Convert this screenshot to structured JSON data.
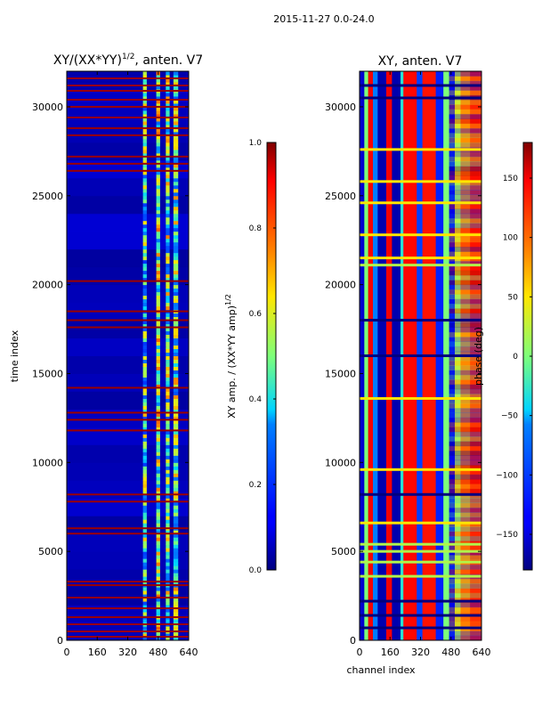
{
  "figure": {
    "suptitle": "2015-11-27 0.0-24.0"
  },
  "chart_data": [
    {
      "type": "heatmap",
      "title": "XY/(XX*YY)^1/2, anten. V7",
      "title_main": "XY/(XX*YY)",
      "title_exp": "1/2",
      "title_tail": ", anten. V7",
      "xlabel": "",
      "ylabel": "time index",
      "xlim": [
        0,
        640
      ],
      "ylim": [
        0,
        32000
      ],
      "xticks": [
        0,
        160,
        320,
        480,
        640
      ],
      "yticks": [
        0,
        5000,
        10000,
        15000,
        20000,
        25000,
        30000
      ],
      "colorbar": {
        "label": "XY amp. / (XX*YY amp)^1/2",
        "label_main": "XY amp. / (XX*YY amp)",
        "label_exp": "1/2",
        "range": [
          0.0,
          1.0
        ],
        "ticks": [
          "0.0",
          "0.2",
          "0.4",
          "0.6",
          "0.8",
          "1.0"
        ],
        "tick_values": [
          0.0,
          0.2,
          0.4,
          0.6,
          0.8,
          1.0
        ]
      },
      "background_level": 0.05,
      "bands": [
        {
          "x0": 400,
          "x1": 420,
          "level": 0.45
        },
        {
          "x0": 470,
          "x1": 490,
          "level": 0.55
        },
        {
          "x0": 520,
          "x1": 540,
          "level": 0.5
        },
        {
          "x0": 560,
          "x1": 585,
          "level": 0.5
        }
      ],
      "flag_rows": [
        200,
        500,
        900,
        1300,
        1800,
        2400,
        3100,
        3300,
        6000,
        6300,
        7800,
        8200,
        11800,
        12400,
        12800,
        14200,
        17600,
        18000,
        18500,
        20200,
        26400,
        26800,
        27200,
        28400,
        28800,
        29400,
        30000,
        30400,
        30900,
        31200,
        31600
      ]
    },
    {
      "type": "heatmap",
      "title": "XY, anten. V7",
      "xlabel": "channel index",
      "ylabel": "",
      "xlim": [
        0,
        640
      ],
      "ylim": [
        0,
        32000
      ],
      "xticks": [
        0,
        160,
        320,
        480,
        640
      ],
      "yticks": [
        0,
        5000,
        10000,
        15000,
        20000,
        25000,
        30000
      ],
      "colorbar": {
        "label": "phase (deg)",
        "range": [
          -180,
          180
        ],
        "ticks": [
          "−150",
          "−100",
          "−50",
          "0",
          "50",
          "100",
          "150"
        ],
        "tick_values": [
          -150,
          -100,
          -50,
          0,
          50,
          100,
          150
        ]
      },
      "stripes": [
        {
          "x0": 0,
          "x1": 25,
          "value": -155
        },
        {
          "x0": 25,
          "x1": 45,
          "value": 0
        },
        {
          "x0": 45,
          "x1": 70,
          "value": 150
        },
        {
          "x0": 70,
          "x1": 95,
          "value": -60
        },
        {
          "x0": 95,
          "x1": 140,
          "value": -165
        },
        {
          "x0": 140,
          "x1": 170,
          "value": 150
        },
        {
          "x0": 170,
          "x1": 215,
          "value": -165
        },
        {
          "x0": 215,
          "x1": 230,
          "value": -30
        },
        {
          "x0": 230,
          "x1": 300,
          "value": 145
        },
        {
          "x0": 300,
          "x1": 330,
          "value": -100
        },
        {
          "x0": 330,
          "x1": 400,
          "value": 140
        },
        {
          "x0": 400,
          "x1": 440,
          "value": -120
        },
        {
          "x0": 440,
          "x1": 470,
          "value": 0
        },
        {
          "x0": 470,
          "x1": 500,
          "value": -150
        },
        {
          "x0": 500,
          "x1": 530,
          "value": 30
        },
        {
          "x0": 530,
          "x1": 580,
          "value": 100
        },
        {
          "x0": 580,
          "x1": 640,
          "value": 140
        }
      ],
      "flag_rows": [
        {
          "y": 31200,
          "value": -180
        },
        {
          "y": 30500,
          "value": -180
        },
        {
          "y": 27600,
          "value": 50
        },
        {
          "y": 25800,
          "value": 50
        },
        {
          "y": 24600,
          "value": 50
        },
        {
          "y": 22800,
          "value": 50
        },
        {
          "y": 21500,
          "value": 50
        },
        {
          "y": 21100,
          "value": 20
        },
        {
          "y": 18000,
          "value": -180
        },
        {
          "y": 16000,
          "value": -180
        },
        {
          "y": 13600,
          "value": 50
        },
        {
          "y": 9600,
          "value": 50
        },
        {
          "y": 8200,
          "value": -180
        },
        {
          "y": 6600,
          "value": 50
        },
        {
          "y": 5400,
          "value": 20
        },
        {
          "y": 5000,
          "value": 20
        },
        {
          "y": 4400,
          "value": 20
        },
        {
          "y": 3600,
          "value": 20
        },
        {
          "y": 2200,
          "value": -180
        },
        {
          "y": 1400,
          "value": -180
        },
        {
          "y": 700,
          "value": -180
        }
      ]
    }
  ]
}
